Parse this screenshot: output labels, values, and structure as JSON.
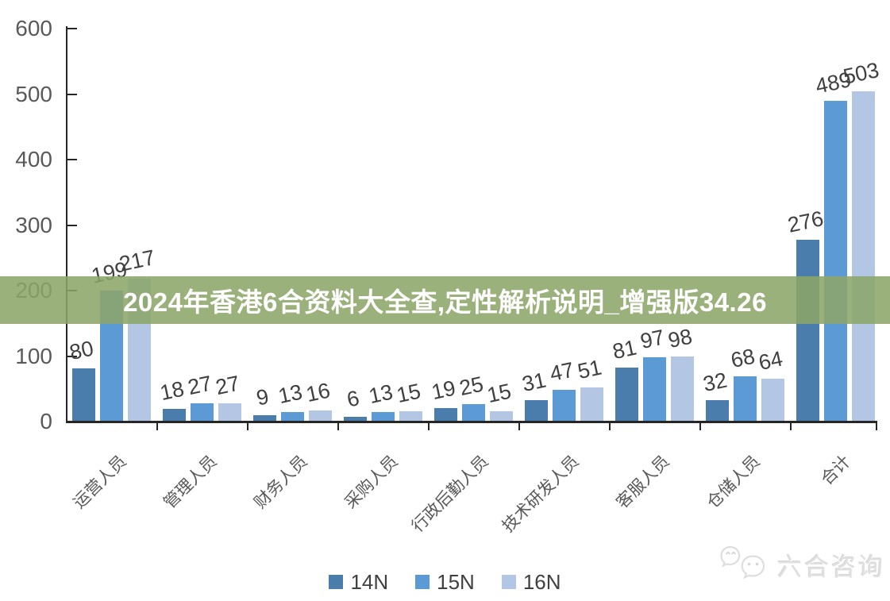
{
  "banner": {
    "title": "2024年香港6合资料大全查,定性解析说明_增强版34.26",
    "bg_color": "#8CA569",
    "text_color": "#FFFFFF"
  },
  "chart_data": {
    "type": "bar",
    "title": "",
    "xlabel": "",
    "ylabel": "",
    "categories": [
      "运营人员",
      "管理人员",
      "财务人员",
      "采购人员",
      "行政后勤人员",
      "技术研发人员",
      "客服人员",
      "仓储人员",
      "合计"
    ],
    "series": [
      {
        "name": "14N",
        "color": "#4A7DAC",
        "values": [
          80,
          18,
          9,
          6,
          19,
          31,
          81,
          32,
          276
        ]
      },
      {
        "name": "15N",
        "color": "#5B9AD5",
        "values": [
          199,
          27,
          13,
          13,
          25,
          47,
          97,
          68,
          489
        ]
      },
      {
        "name": "16N",
        "color": "#B3C6E3",
        "values": [
          217,
          27,
          16,
          15,
          15,
          51,
          98,
          64,
          503
        ]
      }
    ],
    "ylim": [
      0,
      600
    ],
    "yticks": [
      0,
      100,
      200,
      300,
      400,
      500,
      600
    ],
    "grid": false,
    "legend_position": "bottom",
    "data_labels_visible": true,
    "category_label_rotation_deg": 45
  },
  "watermark": {
    "text": "六合咨询",
    "icon": "wechat-icon"
  },
  "colors": {
    "axis": "#262626",
    "tick_label": "#595959",
    "data_label": "#404040",
    "background": "#FFFFFF"
  }
}
